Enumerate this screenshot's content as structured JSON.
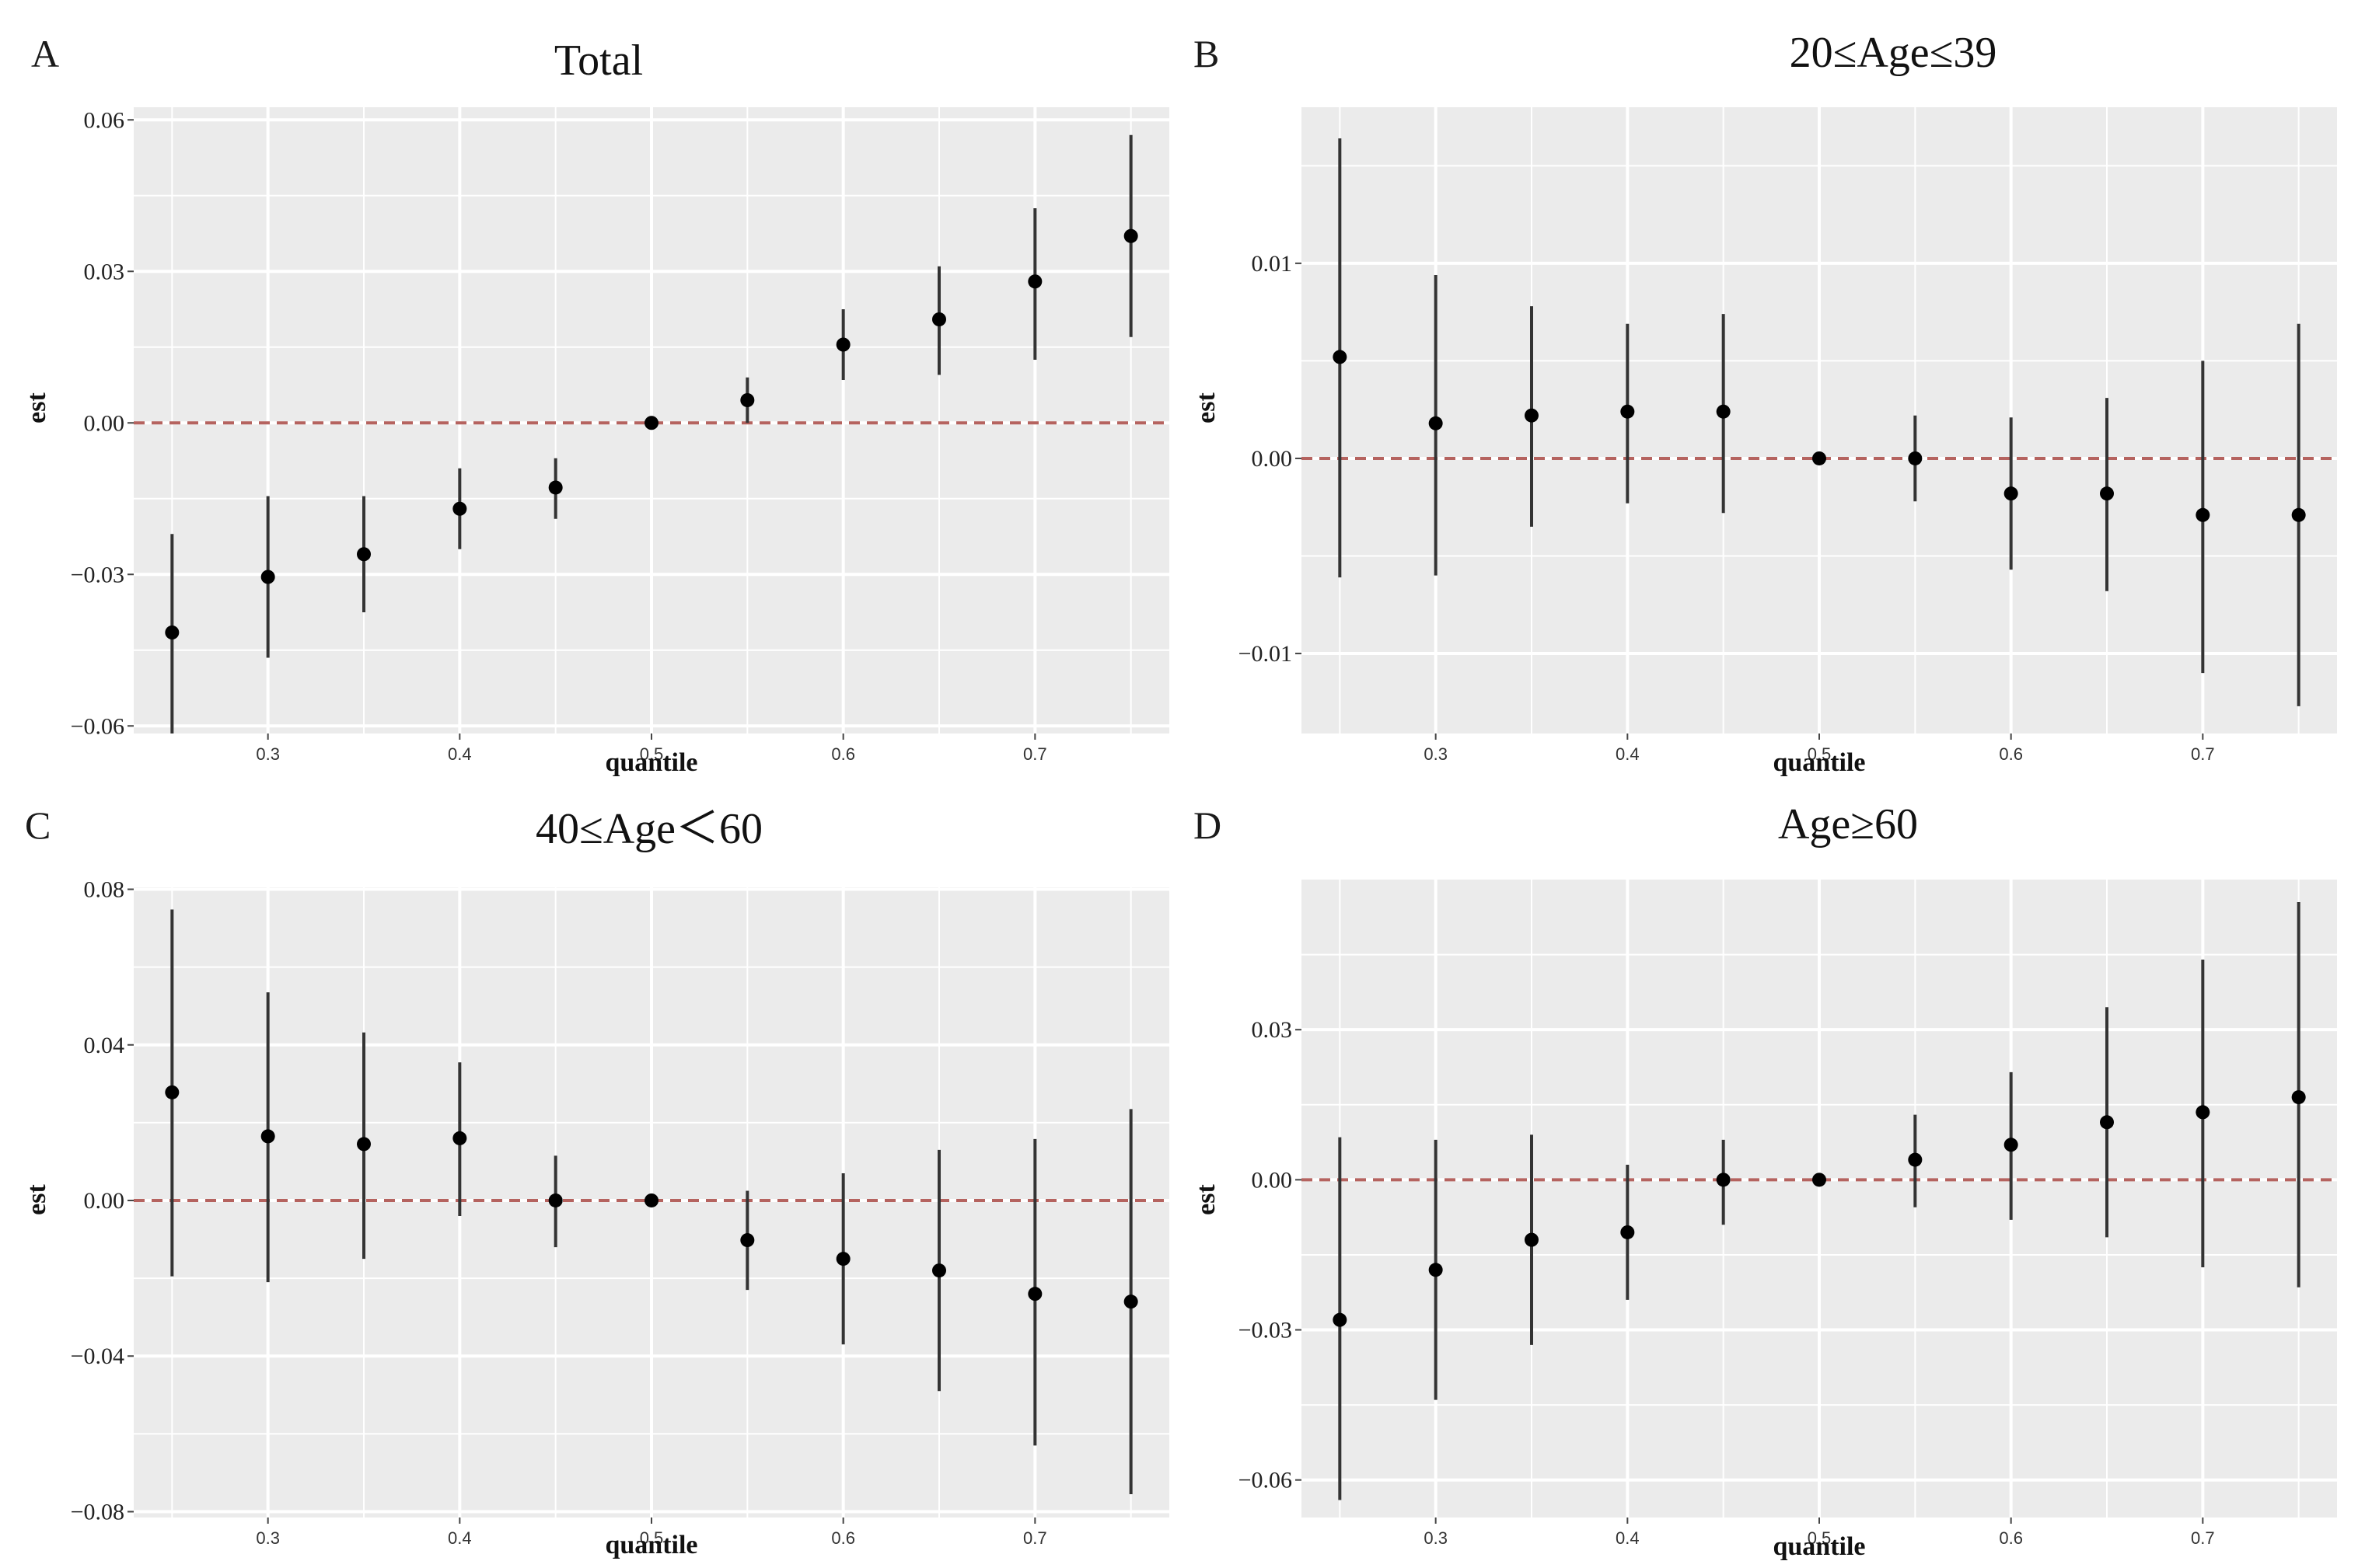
{
  "figure": {
    "background": "#ffffff",
    "plot_background": "#ebebeb",
    "grid_color": "#ffffff",
    "point_color": "#000000",
    "bar_color": "#333333",
    "reference_line_color": "#b5635f"
  },
  "chart_data": [
    {
      "letter": "A",
      "type": "scatter",
      "title": "Total",
      "xlabel": "quantile",
      "ylabel": "est",
      "xlim": [
        0.23,
        0.77
      ],
      "ylim": [
        -0.0615,
        0.0625
      ],
      "xticks": [
        0.3,
        0.4,
        0.5,
        0.6,
        0.7
      ],
      "xtick_labels": [
        "0.3",
        "0.4",
        "0.5",
        "0.6",
        "0.7"
      ],
      "yticks": [
        -0.06,
        -0.03,
        0.0,
        0.03,
        0.06
      ],
      "ytick_labels": [
        "−0.06",
        "−0.03",
        "0.00",
        "0.03",
        "0.06"
      ],
      "reference_line": 0,
      "x": [
        0.25,
        0.3,
        0.35,
        0.4,
        0.45,
        0.5,
        0.55,
        0.6,
        0.65,
        0.7,
        0.75
      ],
      "est": [
        -0.0415,
        -0.0305,
        -0.026,
        -0.017,
        -0.0128,
        0.0,
        0.0045,
        0.0155,
        0.0205,
        0.028,
        0.037
      ],
      "lower": [
        -0.0615,
        -0.0465,
        -0.0375,
        -0.025,
        -0.019,
        0.0,
        0.0,
        0.0085,
        0.0095,
        0.0125,
        0.017
      ],
      "upper": [
        -0.022,
        -0.0145,
        -0.0145,
        -0.009,
        -0.007,
        0.0,
        0.009,
        0.0225,
        0.031,
        0.0425,
        0.057
      ]
    },
    {
      "letter": "B",
      "type": "scatter",
      "title": "20≤Age≤39",
      "xlabel": "quantile",
      "ylabel": "est",
      "xlim": [
        0.23,
        0.77
      ],
      "ylim": [
        -0.0141,
        0.018
      ],
      "xticks": [
        0.3,
        0.4,
        0.5,
        0.6,
        0.7
      ],
      "xtick_labels": [
        "0.3",
        "0.4",
        "0.5",
        "0.6",
        "0.7"
      ],
      "yticks": [
        -0.01,
        0.0,
        0.01
      ],
      "ytick_labels": [
        "−0.01",
        "0.00",
        "0.01"
      ],
      "reference_line": 0,
      "x": [
        0.25,
        0.3,
        0.35,
        0.4,
        0.45,
        0.5,
        0.55,
        0.6,
        0.65,
        0.7,
        0.75
      ],
      "est": [
        0.0052,
        0.0018,
        0.0022,
        0.0024,
        0.0024,
        0.0,
        0.0,
        -0.0018,
        -0.0018,
        -0.0029,
        -0.0029
      ],
      "lower": [
        -0.0061,
        -0.006,
        -0.0035,
        -0.0023,
        -0.0028,
        0.0,
        -0.0022,
        -0.0057,
        -0.0068,
        -0.011,
        -0.0127
      ],
      "upper": [
        0.0164,
        0.0094,
        0.0078,
        0.0069,
        0.0074,
        0.0,
        0.0022,
        0.0021,
        0.0031,
        0.005,
        0.0069
      ]
    },
    {
      "letter": "C",
      "type": "scatter",
      "title": "40≤Age＜60",
      "xlabel": "quantile",
      "ylabel": "est",
      "xlim": [
        0.23,
        0.77
      ],
      "ylim": [
        -0.0815,
        0.0805
      ],
      "xticks": [
        0.3,
        0.4,
        0.5,
        0.6,
        0.7
      ],
      "xtick_labels": [
        "0.3",
        "0.4",
        "0.5",
        "0.6",
        "0.7"
      ],
      "yticks": [
        -0.08,
        -0.04,
        0.0,
        0.04,
        0.08
      ],
      "ytick_labels": [
        "−0.08",
        "−0.04",
        "0.00",
        "0.04",
        "0.08"
      ],
      "reference_line": 0,
      "x": [
        0.25,
        0.3,
        0.35,
        0.4,
        0.45,
        0.5,
        0.55,
        0.6,
        0.65,
        0.7,
        0.75
      ],
      "est": [
        0.0278,
        0.0165,
        0.0145,
        0.016,
        0.0,
        0.0,
        -0.0102,
        -0.015,
        -0.018,
        -0.024,
        -0.026
      ],
      "lower": [
        -0.0195,
        -0.021,
        -0.015,
        -0.004,
        -0.012,
        0.0,
        -0.023,
        -0.037,
        -0.049,
        -0.063,
        -0.0755
      ],
      "upper": [
        0.0748,
        0.0535,
        0.0432,
        0.0355,
        0.0115,
        0.0,
        0.0025,
        0.007,
        0.013,
        0.0158,
        0.0235
      ]
    },
    {
      "letter": "D",
      "type": "scatter",
      "title": "Age≥60",
      "xlabel": "quantile",
      "ylabel": "est",
      "xlim": [
        0.23,
        0.77
      ],
      "ylim": [
        -0.0675,
        0.06
      ],
      "xticks": [
        0.3,
        0.4,
        0.5,
        0.6,
        0.7
      ],
      "xtick_labels": [
        "0.3",
        "0.4",
        "0.5",
        "0.6",
        "0.7"
      ],
      "yticks": [
        -0.06,
        -0.03,
        0.0,
        0.03
      ],
      "ytick_labels": [
        "−0.06",
        "−0.03",
        "0.00",
        "0.03"
      ],
      "reference_line": 0,
      "x": [
        0.25,
        0.3,
        0.35,
        0.4,
        0.45,
        0.5,
        0.55,
        0.6,
        0.65,
        0.7,
        0.75
      ],
      "est": [
        -0.028,
        -0.018,
        -0.012,
        -0.0105,
        0.0,
        0.0,
        0.004,
        0.007,
        0.0115,
        0.0135,
        0.0165
      ],
      "lower": [
        -0.064,
        -0.044,
        -0.033,
        -0.024,
        -0.009,
        0.0,
        -0.0055,
        -0.008,
        -0.0115,
        -0.0175,
        -0.0215
      ],
      "upper": [
        0.0085,
        0.008,
        0.009,
        0.003,
        0.008,
        0.0,
        0.013,
        0.0215,
        0.0345,
        0.044,
        0.0555
      ]
    }
  ]
}
